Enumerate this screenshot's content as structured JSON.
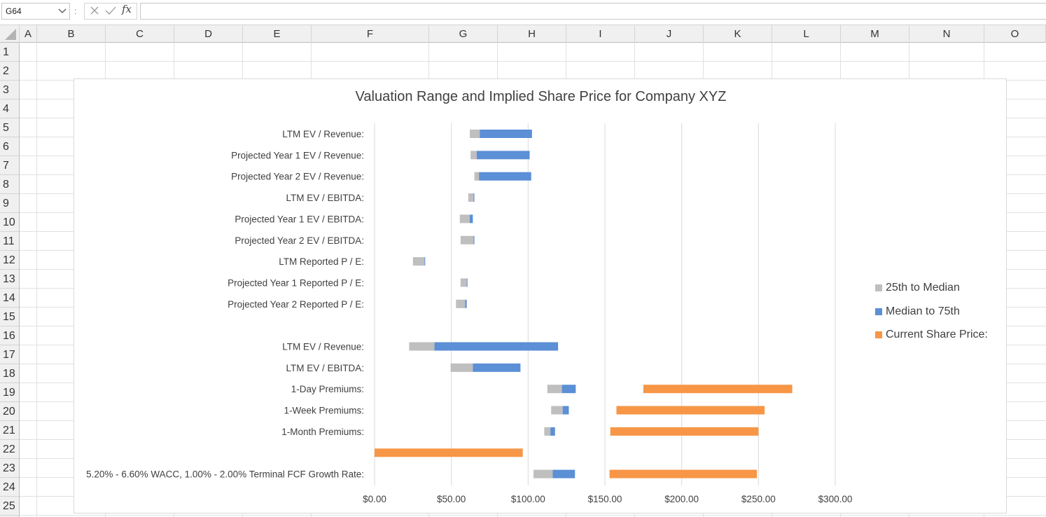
{
  "formula_bar": {
    "name_box": "G64",
    "separator": ":",
    "fx_label": "fx",
    "formula": ""
  },
  "columns": [
    "A",
    "B",
    "C",
    "D",
    "E",
    "F",
    "G",
    "H",
    "I",
    "J",
    "K",
    "L",
    "M",
    "N",
    "O"
  ],
  "rows": [
    "1",
    "2",
    "3",
    "4",
    "5",
    "6",
    "7",
    "8",
    "9",
    "10",
    "11",
    "12",
    "13",
    "14",
    "15",
    "16",
    "17",
    "18",
    "19",
    "20",
    "21",
    "22",
    "23",
    "24",
    "25"
  ],
  "colors": {
    "gray": "#bfbfbf",
    "blue": "#5b8fd6",
    "orange": "#f79646"
  },
  "chart_data": {
    "type": "bar",
    "orientation": "horizontal-stacked-range",
    "title": "Valuation Range and Implied Share Price for Company XYZ",
    "xlim": [
      0,
      300
    ],
    "x_ticks": [
      0,
      50,
      100,
      150,
      200,
      250,
      300
    ],
    "x_tick_labels": [
      "$0.00",
      "$50.00",
      "$100.00",
      "$150.00",
      "$200.00",
      "$250.00",
      "$300.00"
    ],
    "grid": true,
    "legend_position": "right",
    "series": [
      {
        "name": "25th to Median"
      },
      {
        "name": "Median to 75th"
      },
      {
        "name": "Current Share Price:"
      }
    ],
    "categories": [
      {
        "label": "LTM EV / Revenue:",
        "q25": 62,
        "median": 68.5,
        "q75": 102.5
      },
      {
        "label": "Projected Year 1 EV / Revenue:",
        "q25": 62.5,
        "median": 66.5,
        "q75": 101
      },
      {
        "label": "Projected Year 2 EV / Revenue:",
        "q25": 65,
        "median": 68,
        "q75": 102
      },
      {
        "label": "LTM EV / EBITDA:",
        "q25": 61,
        "median": 64.5,
        "q75": 65
      },
      {
        "label": "Projected Year 1 EV / EBITDA:",
        "q25": 55.5,
        "median": 62,
        "q75": 64
      },
      {
        "label": "Projected Year 2 EV / EBITDA:",
        "q25": 56,
        "median": 64.5,
        "q75": 65
      },
      {
        "label": "LTM Reported P / E:",
        "q25": 25,
        "median": 32.5,
        "q75": 32.5
      },
      {
        "label": "Projected Year 1 Reported P / E:",
        "q25": 56,
        "median": 60,
        "q75": 60.5
      },
      {
        "label": "Projected Year 2 Reported P / E:",
        "q25": 53,
        "median": 59,
        "q75": 60
      },
      {
        "label": "",
        "q25": null,
        "median": null,
        "q75": null
      },
      {
        "label": "LTM EV / Revenue:",
        "q25": 22.5,
        "median": 39,
        "q75": 119.5
      },
      {
        "label": "LTM EV / EBITDA:",
        "q25": 49.5,
        "median": 64,
        "q75": 95
      },
      {
        "label": "1-Day Premiums:",
        "q25": 112.5,
        "median": 122,
        "q75": 131,
        "current_low": 175,
        "current_high": 272
      },
      {
        "label": "1-Week Premiums:",
        "q25": 115,
        "median": 122.5,
        "q75": 126.5,
        "current_low": 157.5,
        "current_high": 254
      },
      {
        "label": "1-Month Premiums:",
        "q25": 110.5,
        "median": 114.5,
        "q75": 117.5,
        "current_low": 153.5,
        "current_high": 250
      },
      {
        "label": "",
        "current_low": 0,
        "current_high": 96.5
      },
      {
        "label": "5.20% - 6.60% WACC, 1.00% - 2.00% Terminal FCF Growth Rate:",
        "q25": 103.5,
        "median": 116,
        "q75": 130.5,
        "current_low": 153,
        "current_high": 249
      }
    ]
  }
}
